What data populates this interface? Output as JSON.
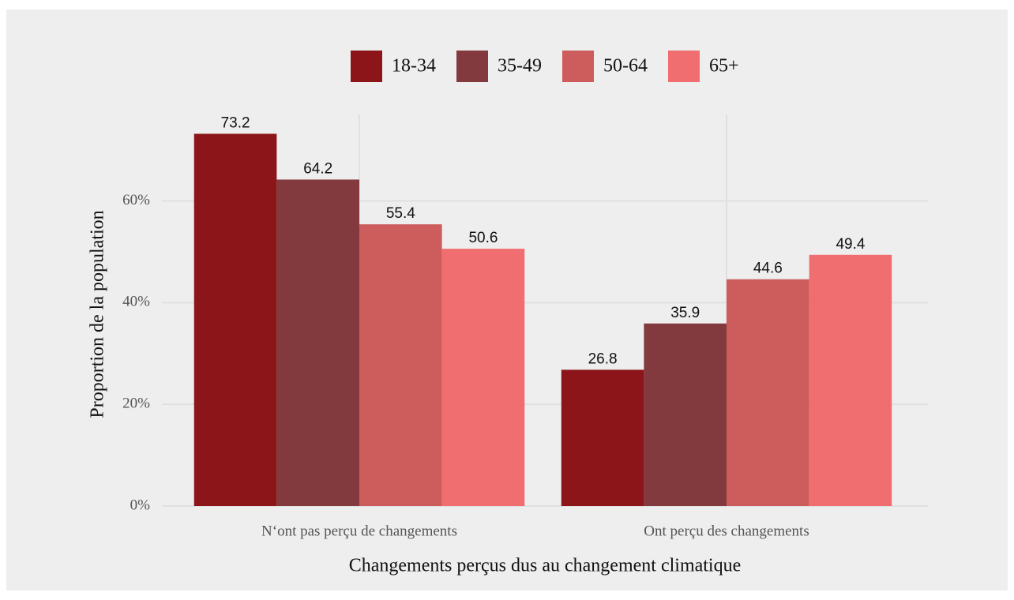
{
  "chart_data": {
    "type": "bar",
    "xlabel": "Changements perçus dus au changement climatique",
    "ylabel": "Proportion de la population",
    "categories": [
      "N‘ont pas perçu de changements",
      "Ont perçu des changements"
    ],
    "series": [
      {
        "name": "18-34",
        "color": "#8b1518",
        "values": [
          73.2,
          26.8
        ]
      },
      {
        "name": "35-49",
        "color": "#833a3e",
        "values": [
          64.2,
          35.9
        ]
      },
      {
        "name": "50-64",
        "color": "#cc5d5c",
        "values": [
          55.4,
          44.6
        ]
      },
      {
        "name": "65+",
        "color": "#f06e6f",
        "values": [
          50.6,
          49.4
        ]
      }
    ],
    "ylim": [
      0,
      77
    ],
    "yticks": [
      {
        "value": 0,
        "label": "0%"
      },
      {
        "value": 20,
        "label": "20%"
      },
      {
        "value": 40,
        "label": "40%"
      },
      {
        "value": 60,
        "label": "60%"
      }
    ],
    "grid": true,
    "legend": "top"
  }
}
